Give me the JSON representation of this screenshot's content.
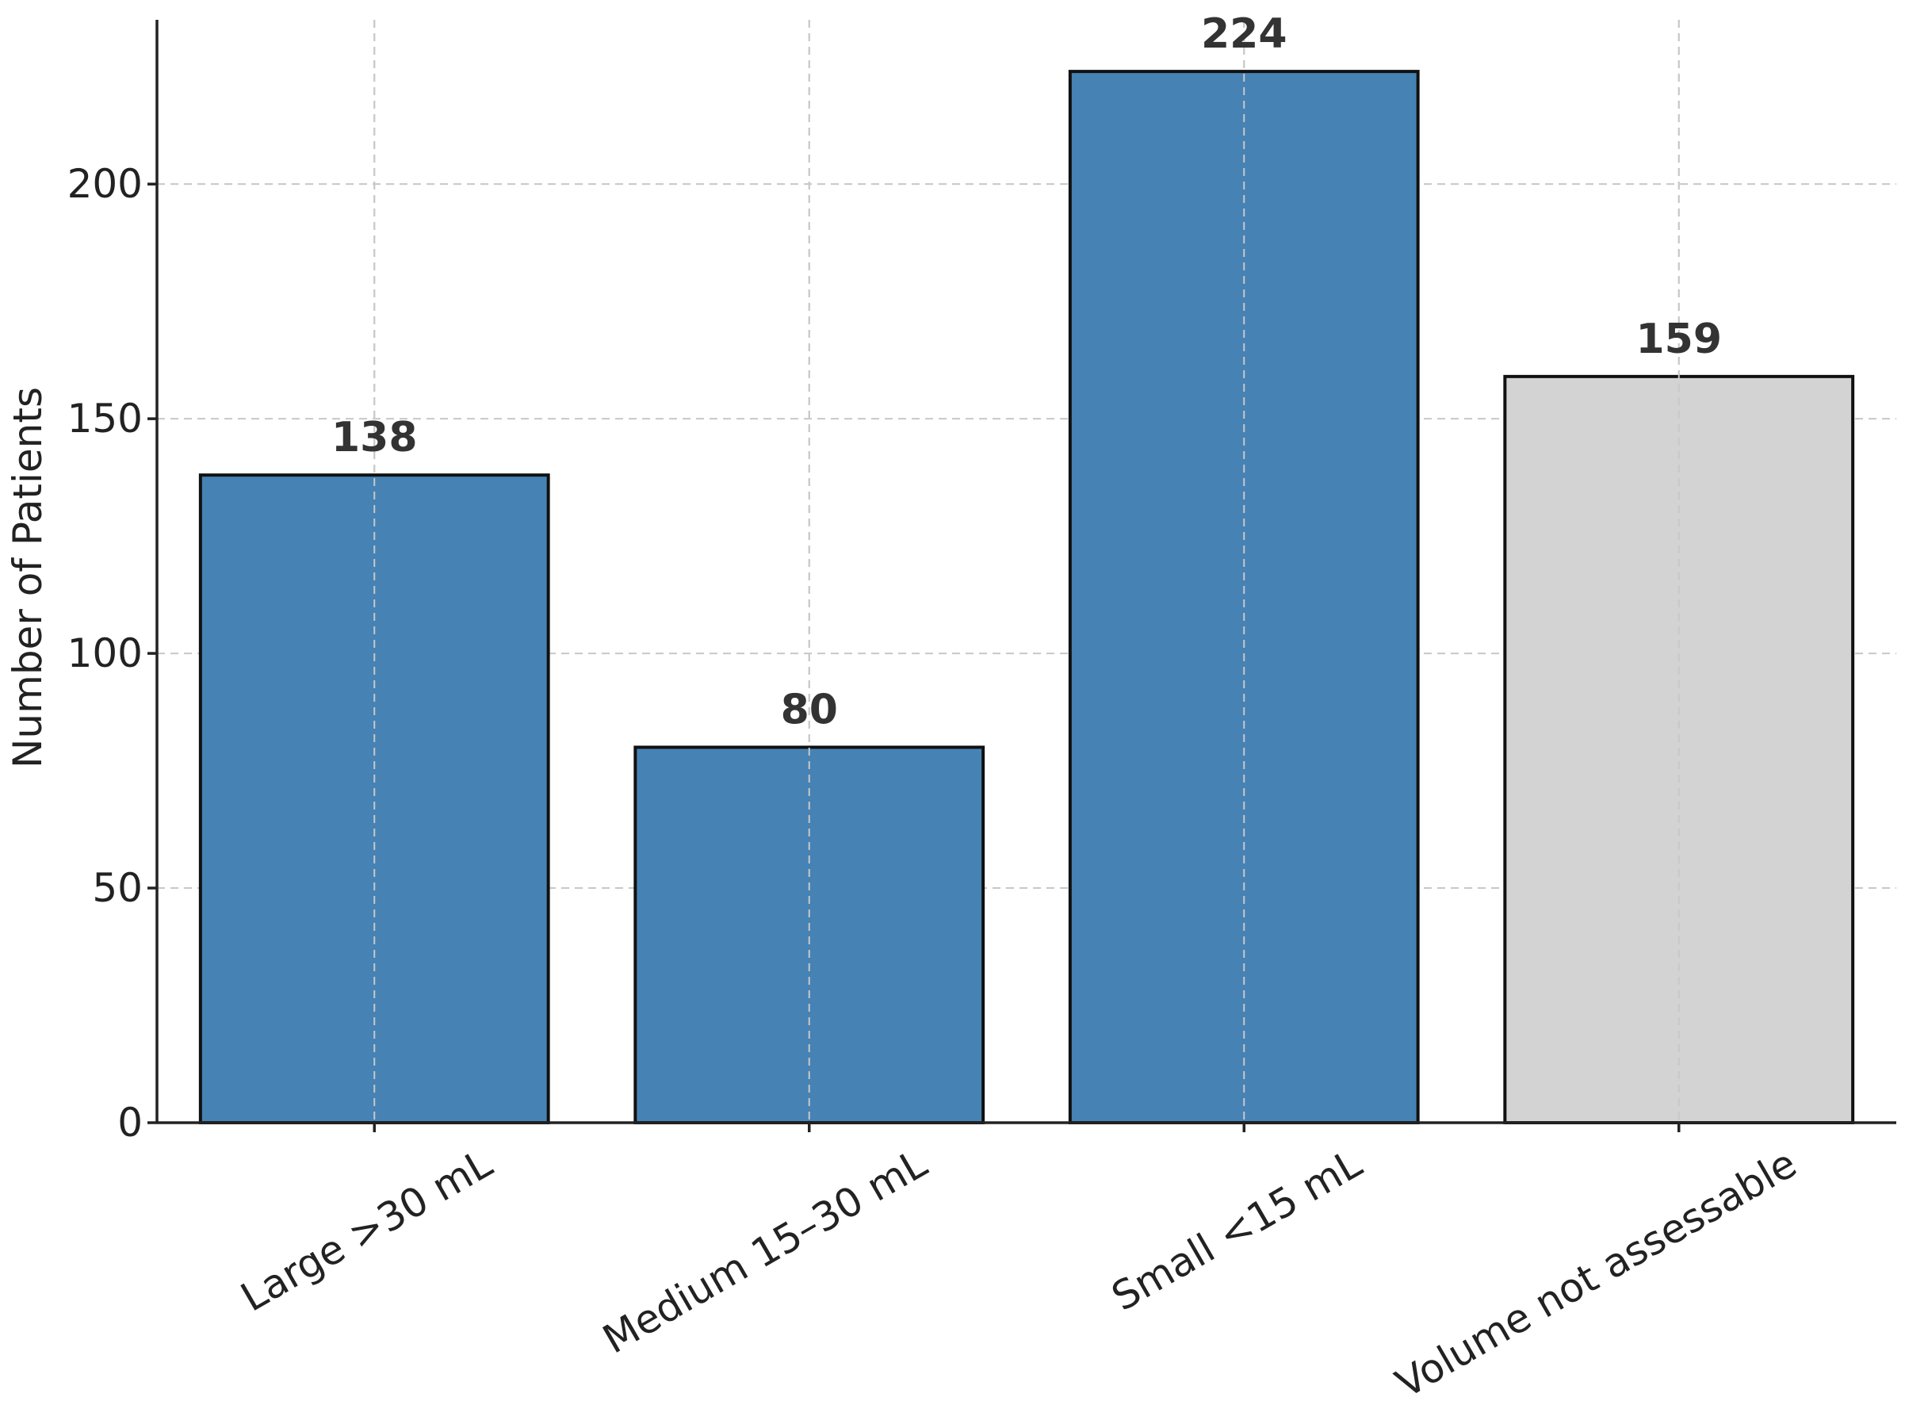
{
  "chart_data": {
    "type": "bar",
    "title": "",
    "xlabel": "",
    "ylabel": "Number of Patients",
    "categories": [
      "Large >30 mL",
      "Medium 15–30 mL",
      "Small <15 mL",
      "Volume not assessable"
    ],
    "values": [
      138,
      80,
      224,
      159
    ],
    "bar_colors": [
      "#4682b4",
      "#4682b4",
      "#4682b4",
      "#d3d3d3"
    ],
    "ylim": [
      0,
      235
    ],
    "yticks": [
      0,
      50,
      100,
      150,
      200
    ],
    "grid": true,
    "legend": false
  }
}
